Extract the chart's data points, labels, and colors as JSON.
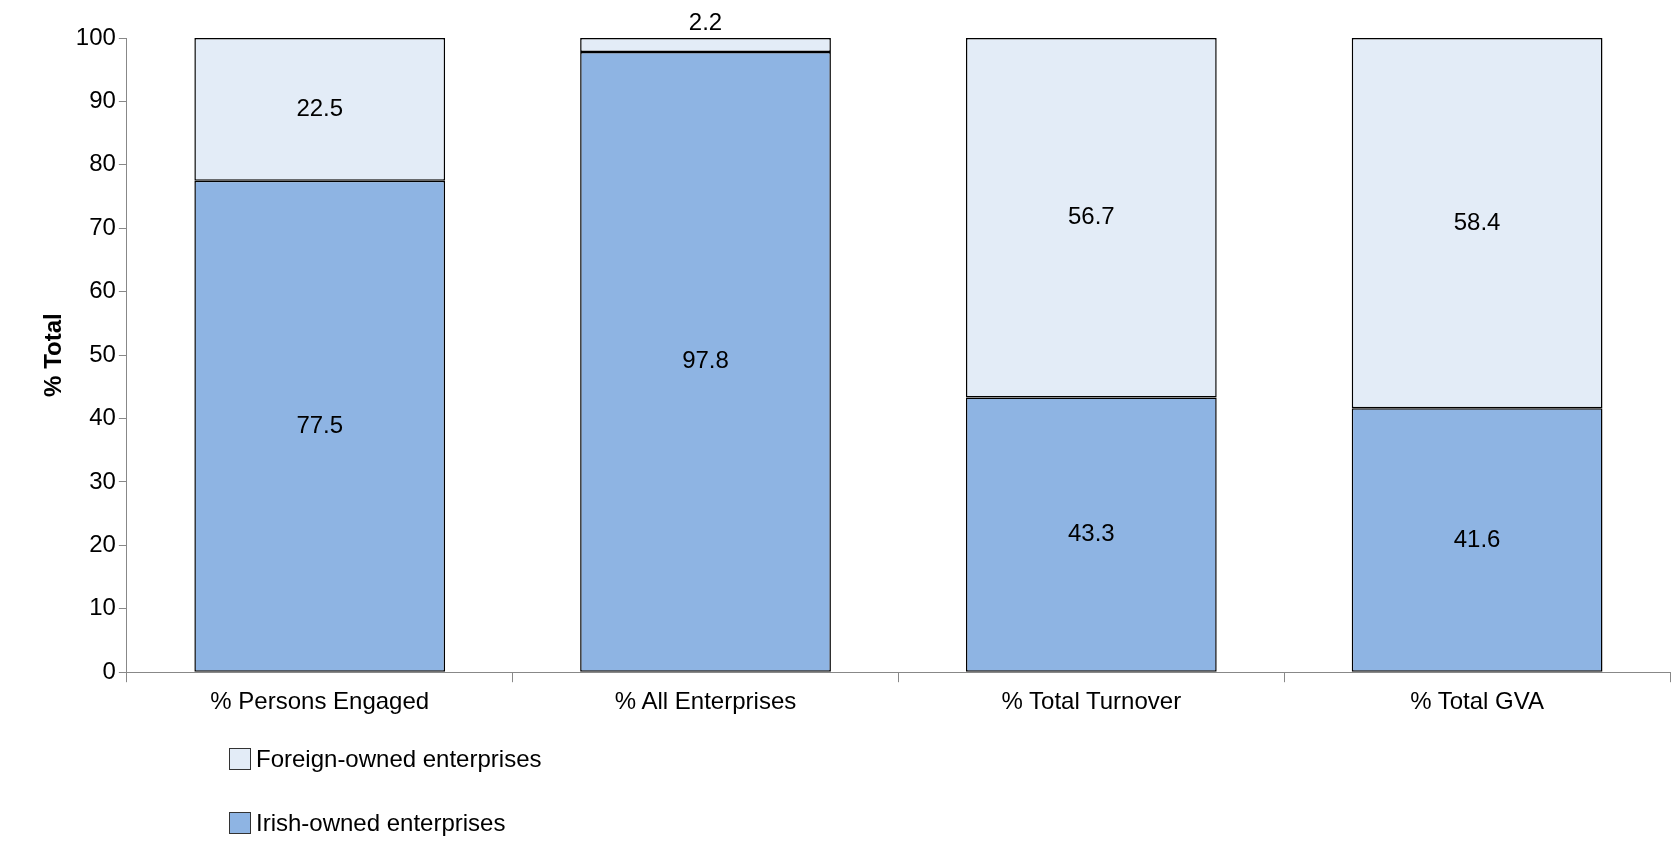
{
  "chart_data": {
    "type": "bar",
    "stacked": true,
    "ylabel": "% Total",
    "categories": [
      "% Persons Engaged",
      "% All Enterprises",
      "% Total Turnover",
      "% Total GVA"
    ],
    "series": [
      {
        "name": "Irish-owned enterprises",
        "color": "#8eb4e3",
        "values": [
          77.5,
          97.8,
          43.3,
          41.6
        ]
      },
      {
        "name": "Foreign-owned enterprises",
        "color": "#e3ecf7",
        "values": [
          22.5,
          2.2,
          56.7,
          58.4
        ]
      }
    ],
    "ylim": [
      0,
      100
    ],
    "yticks": [
      0,
      10,
      20,
      30,
      40,
      50,
      60,
      70,
      80,
      90,
      100
    ],
    "grid": false,
    "data_labels": true,
    "legend": "bottom left"
  }
}
